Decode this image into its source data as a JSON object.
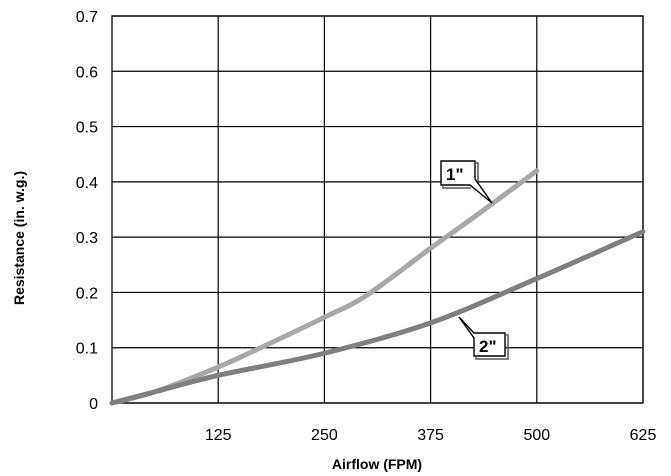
{
  "chart_data": {
    "type": "line",
    "xlabel": "Airflow (FPM)",
    "ylabel": "Resistance (in. w.g.)",
    "xlim": [
      0,
      625
    ],
    "ylim": [
      0,
      0.7
    ],
    "x_ticks": [
      125,
      250,
      375,
      500,
      625
    ],
    "x_tick_labels": [
      "125",
      "250",
      "375",
      "500",
      "625"
    ],
    "y_ticks": [
      0,
      0.1,
      0.2,
      0.3,
      0.4,
      0.5,
      0.6,
      0.7
    ],
    "y_tick_labels": [
      "0",
      "0.1",
      "0.2",
      "0.3",
      "0.4",
      "0.5",
      "0.6",
      "0.7"
    ],
    "grid": true,
    "legend": "none",
    "series": [
      {
        "name": "1\"",
        "color": "#a8a8a8",
        "x": [
          0,
          50,
          125,
          175,
          250,
          300,
          375,
          425,
          500
        ],
        "y": [
          0,
          0.02,
          0.065,
          0.1,
          0.155,
          0.195,
          0.28,
          0.335,
          0.42
        ]
      },
      {
        "name": "2\"",
        "color": "#7f7f7f",
        "x": [
          0,
          50,
          125,
          250,
          375,
          500,
          625
        ],
        "y": [
          0,
          0.02,
          0.05,
          0.09,
          0.145,
          0.225,
          0.31
        ]
      }
    ],
    "annotations": [
      {
        "label": "1\"",
        "series": 0
      },
      {
        "label": "2\"",
        "series": 1
      }
    ]
  }
}
